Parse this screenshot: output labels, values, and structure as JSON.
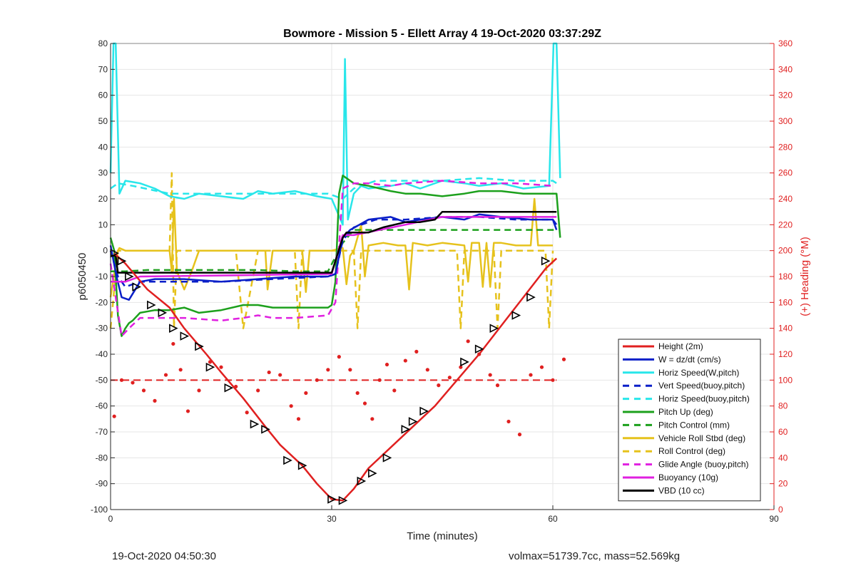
{
  "chart_data": {
    "type": "line",
    "title": "Bowmore - Mission 5 - Ellett Array 4 19-Oct-2020 03:37:29Z",
    "xlabel": "Time (minutes)",
    "ylabel": "p6050450",
    "ylabel_right": "(+) Heading (°M)",
    "xlim": [
      0,
      90
    ],
    "ylim": [
      -100,
      80
    ],
    "ylim_right": [
      0,
      360
    ],
    "x_ticks": [
      0,
      30,
      60,
      90
    ],
    "y_ticks": [
      -100,
      -90,
      -80,
      -70,
      -60,
      -50,
      -40,
      -30,
      -20,
      -10,
      0,
      10,
      20,
      30,
      40,
      50,
      60,
      70,
      80
    ],
    "y_right_ticks": [
      0,
      20,
      40,
      60,
      80,
      100,
      120,
      140,
      160,
      180,
      200,
      220,
      240,
      260,
      280,
      300,
      320,
      340,
      360
    ],
    "grid": true,
    "legend_position": "bottom-right",
    "colors": {
      "red": "#e02020",
      "blue": "#0a1fc8",
      "cyan": "#28e6ea",
      "green": "#1ca01c",
      "yellow": "#e6c21c",
      "magenta": "#e020e0",
      "black": "#000000",
      "right_axis": "#e02020",
      "grid": "#e6e6e6"
    },
    "series": [
      {
        "name": "Height (2m)",
        "color": "#e02020",
        "dash": "solid",
        "x": [
          0.5,
          2,
          5,
          8,
          10,
          13,
          15,
          18,
          21,
          23,
          26,
          28,
          30,
          31.5,
          33,
          35,
          38,
          41,
          44,
          47,
          50,
          53,
          56,
          59,
          60.5
        ],
        "y": [
          -1,
          -5,
          -15,
          -22,
          -30,
          -40,
          -47,
          -57,
          -68,
          -75,
          -83,
          -90,
          -96,
          -96.5,
          -92,
          -84,
          -76,
          -68,
          -60,
          -50,
          -40,
          -29,
          -18,
          -7,
          -3
        ]
      },
      {
        "name": "W = dz/dt (cm/s)",
        "color": "#0a1fc8",
        "dash": "solid",
        "x": [
          0,
          0.8,
          1.5,
          2.5,
          4,
          6,
          10,
          15,
          20,
          25,
          29.5,
          30.5,
          31.5,
          32.5,
          35,
          38,
          40,
          42,
          45,
          48,
          50,
          53,
          57,
          60,
          60.5
        ],
        "y": [
          2,
          -10,
          -18,
          -19,
          -12,
          -11,
          -11,
          -12,
          -11,
          -10,
          -10,
          -9,
          5,
          8,
          12,
          13,
          11,
          12,
          13,
          12,
          14,
          13,
          12,
          12,
          8
        ]
      },
      {
        "name": "Horiz Speed(W,pitch)",
        "color": "#28e6ea",
        "dash": "solid",
        "x": [
          0,
          0.4,
          0.7,
          1.2,
          2,
          4,
          6,
          8,
          10,
          12,
          15,
          18,
          20,
          22,
          25,
          28,
          30,
          31.5,
          31.8,
          32.2,
          33,
          34,
          35,
          38,
          40,
          42,
          45,
          48,
          50,
          53,
          56,
          59.5,
          60.1,
          60.5,
          61
        ],
        "y": [
          30,
          80,
          80,
          22,
          27,
          26,
          24,
          21,
          20,
          22,
          21,
          20,
          23,
          22,
          23,
          21,
          20,
          10,
          74,
          12,
          22,
          25,
          24,
          25,
          26,
          24,
          27,
          26,
          25,
          26,
          24,
          25,
          80,
          80,
          28
        ]
      },
      {
        "name": "Vert Speed(buoy,pitch)",
        "color": "#0a1fc8",
        "dash": "dashed",
        "x": [
          0,
          1,
          2,
          4,
          8,
          15,
          22,
          29.5,
          30.5,
          31.5,
          33,
          36,
          40,
          45,
          50,
          55,
          60,
          60.5
        ],
        "y": [
          0,
          -10,
          -14,
          -12,
          -12,
          -12,
          -11,
          -10,
          -9,
          4,
          9,
          12,
          12,
          13,
          13,
          12,
          12,
          10
        ]
      },
      {
        "name": "Horiz Speed(buoy,pitch)",
        "color": "#28e6ea",
        "dash": "dashed",
        "x": [
          0,
          1,
          3,
          8,
          15,
          22,
          29.5,
          31.5,
          33,
          36,
          40,
          45,
          50,
          55,
          60,
          60.5
        ],
        "y": [
          24,
          26,
          25,
          22,
          22,
          22,
          22,
          20,
          24,
          27,
          27,
          27,
          28,
          27,
          27,
          26
        ]
      },
      {
        "name": "Pitch Up (deg)",
        "color": "#1ca01c",
        "dash": "solid",
        "x": [
          0,
          0.5,
          1,
          1.5,
          2,
          2.5,
          3,
          4,
          6,
          8,
          10,
          12,
          15,
          18,
          20,
          22,
          25,
          28,
          29.5,
          30,
          30.5,
          31,
          31.5,
          33,
          35,
          38,
          40,
          42,
          45,
          48,
          50,
          53,
          56,
          59,
          60,
          60.5,
          61
        ],
        "y": [
          5,
          0,
          -25,
          -33,
          -30,
          -28,
          -27,
          -24,
          -23,
          -23,
          -22,
          -24,
          -23,
          -21,
          -21,
          -22,
          -22,
          -22,
          -22,
          -21,
          -12,
          22,
          29,
          26,
          25,
          23,
          22,
          22,
          21,
          22,
          23,
          23,
          22,
          22,
          22,
          22,
          5
        ]
      },
      {
        "name": "Pitch Control (mm)",
        "color": "#1ca01c",
        "dash": "dashed",
        "x": [
          0,
          1,
          2,
          5,
          10,
          15,
          20,
          25,
          29.5,
          31.5,
          33,
          35,
          38,
          40,
          45,
          50,
          55,
          60,
          60.5
        ],
        "y": [
          -8,
          -8,
          -8,
          -7.5,
          -7.5,
          -7.5,
          -7.5,
          -8,
          -8,
          3,
          8,
          8,
          8,
          8,
          8,
          8,
          8,
          8,
          8
        ]
      },
      {
        "name": "Vehicle Roll Stbd (deg)",
        "color": "#e6c21c",
        "dash": "solid",
        "x": [
          0,
          1,
          1.2,
          2,
          4,
          6,
          8,
          8.3,
          8.6,
          9,
          10,
          11,
          12,
          14,
          16,
          18,
          20,
          21,
          21.3,
          22,
          24,
          26,
          26.5,
          27,
          28,
          30,
          31.5,
          32,
          32.5,
          33,
          34,
          34.5,
          35,
          37,
          39,
          40,
          40.5,
          41,
          43,
          45,
          48,
          48.5,
          49,
          50,
          50.5,
          51,
          51.5,
          52,
          53,
          55,
          57,
          57.5,
          58,
          60
        ],
        "y": [
          -18,
          0,
          1,
          0,
          0,
          0,
          0,
          -8,
          20,
          -8,
          -15,
          -8,
          0,
          0,
          0,
          0,
          0,
          0,
          -15,
          0,
          0,
          0,
          -16,
          0,
          0,
          0,
          1,
          -13,
          -2,
          0,
          10,
          -10,
          2,
          3,
          2,
          2,
          -15,
          3,
          2,
          3,
          2,
          -12,
          3,
          3,
          -14,
          3,
          -14,
          3,
          3,
          2,
          2,
          20,
          2,
          2
        ]
      },
      {
        "name": "Roll Control (deg)",
        "color": "#e6c21c",
        "dash": "dashed",
        "x": [
          0,
          1,
          2,
          4,
          6,
          8,
          8.3,
          8.6,
          9,
          12,
          15,
          17,
          18,
          20,
          20.5,
          22,
          25,
          25.5,
          26,
          28,
          30,
          31.5,
          33,
          33.5,
          34,
          36,
          40,
          44,
          47,
          47.5,
          48,
          50,
          52,
          52.5,
          53,
          56,
          59,
          59.5,
          60
        ],
        "y": [
          -30,
          0,
          0,
          0,
          0,
          0,
          30,
          -30,
          0,
          0,
          0,
          0,
          -30,
          0,
          0,
          0,
          0,
          -30,
          0,
          0,
          0,
          0,
          0,
          -30,
          0,
          0,
          0,
          0,
          0,
          -30,
          0,
          0,
          0,
          -30,
          0,
          0,
          0,
          -30,
          0
        ]
      },
      {
        "name": "Glide Angle (buoy,pitch)",
        "color": "#e020e0",
        "dash": "dashed",
        "x": [
          0,
          1.5,
          2.5,
          4,
          6,
          10,
          15,
          18,
          20,
          22,
          25,
          29.5,
          30.5,
          31.5,
          33,
          35,
          38,
          40,
          45,
          50,
          55,
          60
        ],
        "y": [
          -5,
          -33,
          -30,
          -26,
          -26,
          -26,
          -27,
          -26,
          -25,
          -26,
          -26,
          -25,
          -20,
          24,
          26,
          26,
          25,
          26,
          27,
          26,
          26,
          25
        ]
      },
      {
        "name": "Buoyancy (10g)",
        "color": "#e020e0",
        "dash": "solid",
        "x": [
          0,
          2,
          4,
          30,
          31.5,
          33,
          40,
          45,
          60,
          60.5
        ],
        "y": [
          -12,
          -12,
          -10,
          -9,
          6,
          6,
          10,
          13,
          13,
          13
        ]
      },
      {
        "name": "VBD (10 cc)",
        "color": "#000000",
        "dash": "solid",
        "x": [
          0,
          0.7,
          1,
          30,
          31.5,
          32,
          35,
          36,
          37,
          40,
          42,
          44,
          45,
          50,
          55,
          60,
          60.5
        ],
        "y": [
          -2,
          -2,
          -8.5,
          -8.5,
          5,
          7,
          7,
          8,
          9,
          11,
          11,
          12,
          15,
          15,
          15,
          15,
          15
        ]
      }
    ],
    "heading_dashed": {
      "name": "Heading mean",
      "color": "#e02020",
      "dash": "dashed",
      "x": [
        0,
        60.5
      ],
      "y_right": [
        100,
        100
      ]
    },
    "heading_points": {
      "name": "Heading",
      "color": "#e02020",
      "x": [
        0.5,
        1.5,
        3,
        4.5,
        6,
        7.5,
        8.5,
        9.5,
        10.5,
        12,
        13.5,
        15,
        17,
        18.5,
        20,
        21.5,
        23,
        24.5,
        25.5,
        26.5,
        28,
        29.5,
        31,
        32.5,
        33.5,
        34.5,
        35.5,
        36.5,
        37.5,
        38.5,
        40,
        41.5,
        43,
        44.5,
        46,
        47.5,
        48.5,
        50,
        51.5,
        52.5,
        54,
        55.5,
        57,
        58.5,
        60,
        61.5
      ],
      "y_right": [
        72,
        100,
        98,
        92,
        84,
        104,
        128,
        108,
        76,
        92,
        114,
        110,
        95,
        75,
        92,
        106,
        104,
        80,
        70,
        90,
        100,
        108,
        118,
        108,
        90,
        82,
        70,
        100,
        112,
        92,
        115,
        122,
        108,
        96,
        102,
        110,
        130,
        120,
        104,
        96,
        68,
        58,
        104,
        110,
        100,
        116
      ]
    },
    "markers": {
      "name": "Triangles",
      "color": "#000000",
      "x": [
        0.5,
        1.5,
        2.5,
        3.5,
        5.5,
        7,
        8.5,
        10,
        12,
        13.5,
        16,
        19.5,
        21,
        24,
        26,
        30,
        31.5,
        34,
        35.5,
        37.5,
        40,
        41,
        42.5,
        48,
        50,
        52,
        55,
        57,
        59
      ],
      "y": [
        -1,
        -4,
        -10,
        -14,
        -21,
        -24,
        -30,
        -33,
        -37,
        -45,
        -53,
        -67,
        -69,
        -81,
        -83,
        -96,
        -96.5,
        -89,
        -86,
        -80,
        -69,
        -66,
        -62,
        -43,
        -38,
        -30,
        -25,
        -18,
        -4
      ]
    },
    "footer_left": "19-Oct-2020 04:50:30",
    "footer_right": "volmax=51739.7cc, mass=52.569kg"
  }
}
